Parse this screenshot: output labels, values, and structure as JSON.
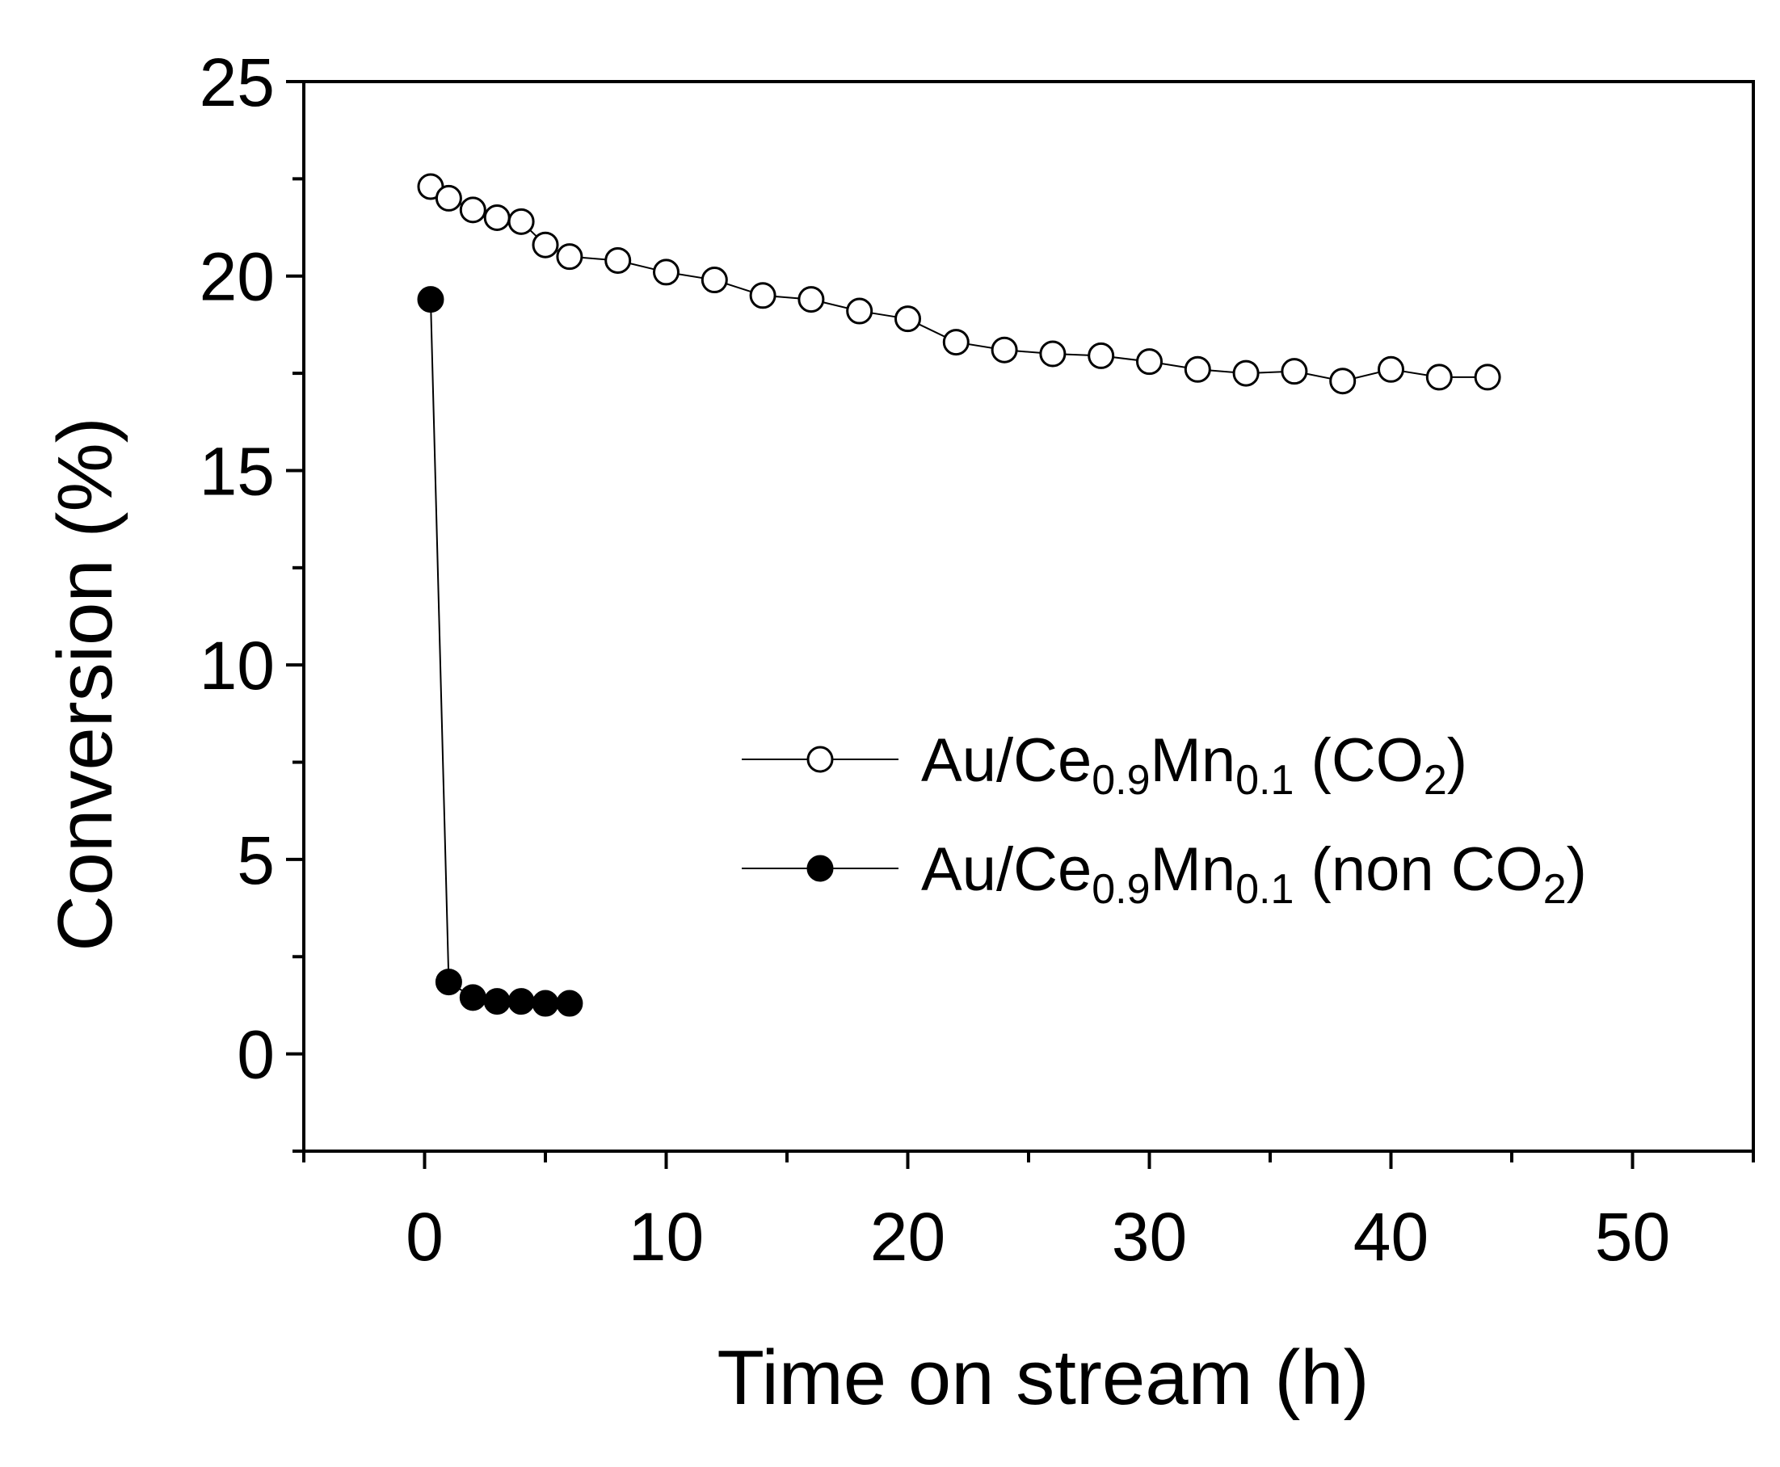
{
  "chart_data": {
    "type": "scatter",
    "xlabel": "Time on stream (h)",
    "ylabel": "Conversion (%)",
    "xlim": [
      -5,
      55
    ],
    "ylim": [
      -2.5,
      25
    ],
    "xticks": [
      0,
      10,
      20,
      30,
      40,
      50
    ],
    "yticks": [
      0,
      5,
      10,
      15,
      20,
      25
    ],
    "legend_position": "center-right",
    "grid": false,
    "series": [
      {
        "name": "Au/Ce0.9Mn0.1 (CO2)",
        "label_parts": [
          {
            "text": "Au/Ce",
            "sub": false
          },
          {
            "text": "0.9",
            "sub": true
          },
          {
            "text": "Mn",
            "sub": false
          },
          {
            "text": "0.1",
            "sub": true
          },
          {
            "text": " (CO",
            "sub": false
          },
          {
            "text": "2",
            "sub": true
          },
          {
            "text": ")",
            "sub": false
          }
        ],
        "marker": "open-circle",
        "x": [
          0.25,
          1,
          2,
          3,
          4,
          5,
          6,
          8,
          10,
          12,
          14,
          16,
          18,
          20,
          22,
          24,
          26,
          28,
          30,
          32,
          34,
          36,
          38,
          40,
          42,
          44
        ],
        "y": [
          22.3,
          22.0,
          21.7,
          21.5,
          21.4,
          20.8,
          20.5,
          20.4,
          20.1,
          19.9,
          19.5,
          19.4,
          19.1,
          18.9,
          18.3,
          18.1,
          18.0,
          17.95,
          17.8,
          17.6,
          17.5,
          17.55,
          17.3,
          17.6,
          17.4,
          17.4
        ]
      },
      {
        "name": "Au/Ce0.9Mn0.1 (non CO2)",
        "label_parts": [
          {
            "text": "Au/Ce",
            "sub": false
          },
          {
            "text": "0.9",
            "sub": true
          },
          {
            "text": "Mn",
            "sub": false
          },
          {
            "text": "0.1",
            "sub": true
          },
          {
            "text": " (non CO",
            "sub": false
          },
          {
            "text": "2",
            "sub": true
          },
          {
            "text": ")",
            "sub": false
          }
        ],
        "marker": "filled-circle",
        "x": [
          0.25,
          1,
          2,
          3,
          4,
          5,
          6
        ],
        "y": [
          19.4,
          1.85,
          1.45,
          1.35,
          1.35,
          1.3,
          1.3
        ]
      }
    ]
  }
}
